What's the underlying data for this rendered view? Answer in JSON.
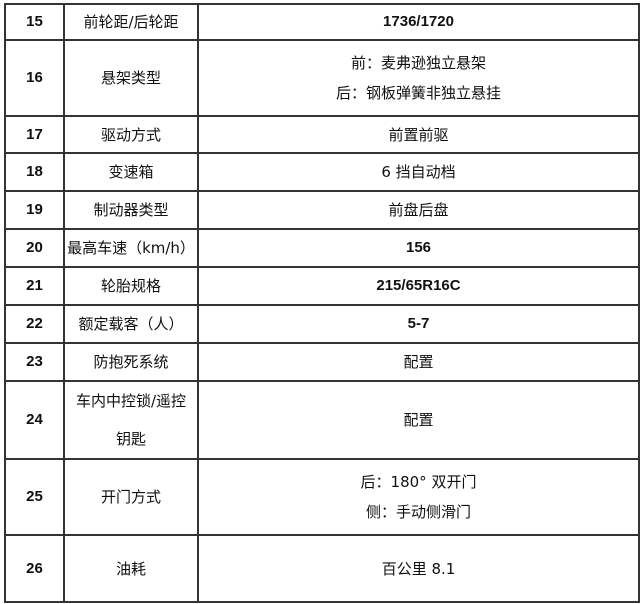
{
  "rows": [
    {
      "no": "15",
      "item": "前轮距/后轮距",
      "value": [
        "1736/1720"
      ]
    },
    {
      "no": "16",
      "item": "悬架类型",
      "value": [
        "前：麦弗逊独立悬架",
        "后：钢板弹簧非独立悬挂"
      ]
    },
    {
      "no": "17",
      "item": "驱动方式",
      "value": [
        "前置前驱"
      ]
    },
    {
      "no": "18",
      "item": "变速箱",
      "value": [
        "6 挡自动档"
      ]
    },
    {
      "no": "19",
      "item": "制动器类型",
      "value": [
        "前盘后盘"
      ]
    },
    {
      "no": "20",
      "item": "最高车速（km/h）",
      "value": [
        "156"
      ]
    },
    {
      "no": "21",
      "item": "轮胎规格",
      "value": [
        "215/65R16C"
      ]
    },
    {
      "no": "22",
      "item": "额定载客（人）",
      "value": [
        "5-7"
      ]
    },
    {
      "no": "23",
      "item": "防抱死系统",
      "value": [
        "配置"
      ]
    },
    {
      "no": "24",
      "item": "车内中控锁/遥控钥匙",
      "value": [
        "配置"
      ]
    },
    {
      "no": "25",
      "item": "开门方式",
      "value": [
        "后：180° 双开门",
        "侧：手动侧滑门"
      ]
    },
    {
      "no": "26",
      "item": "油耗",
      "value": [
        "百公里 8.1"
      ]
    }
  ]
}
